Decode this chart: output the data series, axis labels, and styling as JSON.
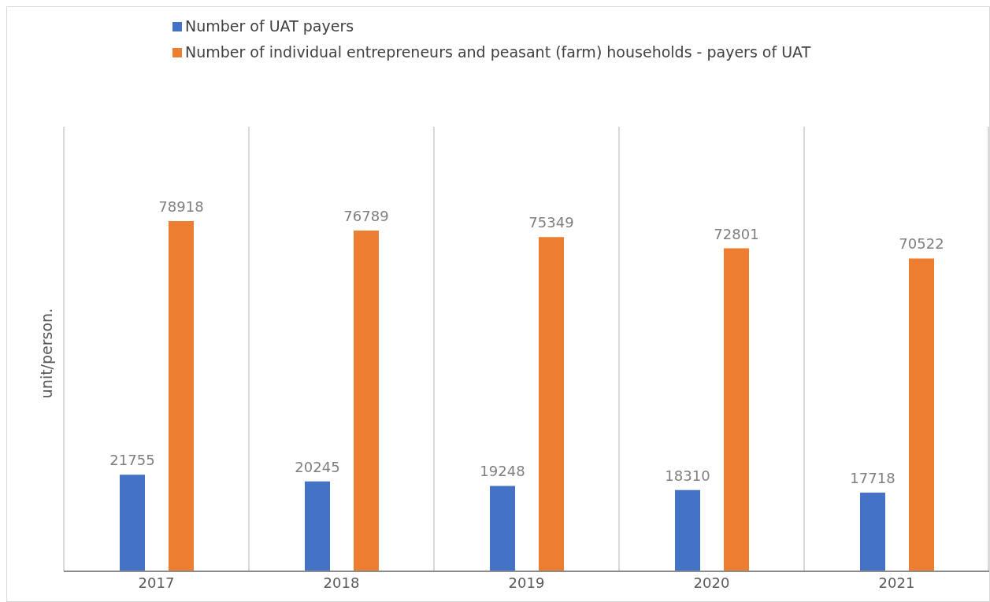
{
  "chart_data": {
    "type": "bar",
    "ylabel": "unit/person.",
    "categories": [
      "2017",
      "2018",
      "2019",
      "2020",
      "2021"
    ],
    "series": [
      {
        "name": "Number of UAT payers",
        "color": "#4472c4",
        "values": [
          21755,
          20245,
          19248,
          18310,
          17718
        ]
      },
      {
        "name": "Number of individual entrepreneurs and peasant (farm) households - payers of UAT",
        "color": "#ed7d31",
        "values": [
          78918,
          76789,
          75349,
          72801,
          70522
        ]
      }
    ],
    "data_labels": true,
    "grid": "x",
    "legend": "top"
  }
}
